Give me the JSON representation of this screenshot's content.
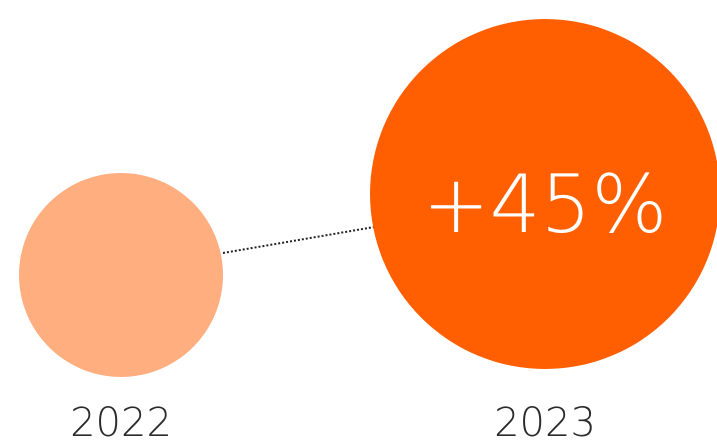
{
  "chart_data": {
    "type": "bubble",
    "categories": [
      "2022",
      "2023"
    ],
    "change_label": "+45%",
    "colors": {
      "2022": "#FFAE80",
      "2023": "#FF5F00",
      "connector": "#222222"
    }
  }
}
